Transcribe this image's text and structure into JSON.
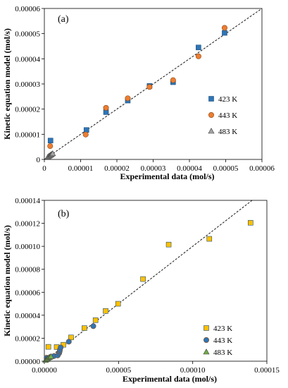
{
  "chart_data": [
    {
      "type": "scatter",
      "panel_label": "(a)",
      "xlabel": "Experimental data (mol/s)",
      "ylabel": "Kinetic equation model (mol/s)",
      "xlim": [
        0,
        6e-05
      ],
      "ylim": [
        0,
        6e-05
      ],
      "x_ticks": [
        "0",
        "0.00001",
        "0.00002",
        "0.00003",
        "0.00004",
        "0.00005",
        "0.00006"
      ],
      "y_ticks": [
        "0",
        "0.00001",
        "0.00002",
        "0.00003",
        "0.00004",
        "0.00005",
        "0.00006"
      ],
      "grid": false,
      "legend_position": "right",
      "parity_line": true,
      "series": [
        {
          "name": "423 K",
          "marker": "square",
          "color": "#2e75b6",
          "points": [
            [
              1.7e-06,
              7.5e-06
            ],
            [
              1.16e-05,
              1.17e-05
            ],
            [
              1.7e-05,
              1.88e-05
            ],
            [
              2.3e-05,
              2.34e-05
            ],
            [
              2.9e-05,
              2.92e-05
            ],
            [
              3.55e-05,
              3.07e-05
            ],
            [
              4.25e-05,
              4.45e-05
            ],
            [
              4.97e-05,
              5.03e-05
            ]
          ]
        },
        {
          "name": "443 K",
          "marker": "circle",
          "color": "#ed7d31",
          "points": [
            [
              1.6e-06,
              5.3e-06
            ],
            [
              1.14e-05,
              9.9e-06
            ],
            [
              1.7e-05,
              2.05e-05
            ],
            [
              2.3e-05,
              2.43e-05
            ],
            [
              2.9e-05,
              2.88e-05
            ],
            [
              3.55e-05,
              3.15e-05
            ],
            [
              4.25e-05,
              4.1e-05
            ],
            [
              4.97e-05,
              5.23e-05
            ]
          ]
        },
        {
          "name": "483 K",
          "marker": "triangle",
          "color": "#a5a5a5",
          "points": [
            [
              1e-06,
              1e-06
            ],
            [
              1.3e-06,
              1.3e-06
            ],
            [
              1.6e-06,
              1.6e-06
            ],
            [
              1.8e-06,
              1.8e-06
            ],
            [
              2e-06,
              2e-06
            ],
            [
              2.3e-06,
              2.3e-06
            ]
          ]
        }
      ]
    },
    {
      "type": "scatter",
      "panel_label": "(b)",
      "xlabel": "Experimental data (mol/s)",
      "ylabel": "Kinetic equation model  (mol/s)",
      "xlim": [
        0,
        0.00015
      ],
      "ylim": [
        0,
        0.00014
      ],
      "x_ticks": [
        "0.00000",
        "0.00005",
        "0.00010",
        "0.00015"
      ],
      "y_ticks": [
        "0.00000",
        "0.00002",
        "0.00004",
        "0.00006",
        "0.00008",
        "0.00010",
        "0.00012",
        "0.00014"
      ],
      "grid": false,
      "legend_position": "bottom-right",
      "parity_line": true,
      "series": [
        {
          "name": "423 K",
          "marker": "square",
          "color": "#ffc000",
          "points": [
            [
              2.7e-06,
              1.25e-05
            ],
            [
              8.3e-06,
              1.23e-05
            ],
            [
              1.28e-05,
              1.43e-05
            ],
            [
              1.8e-05,
              2.07e-05
            ],
            [
              2.7e-05,
              2.88e-05
            ],
            [
              3.45e-05,
              3.57e-05
            ],
            [
              4.13e-05,
              4.37e-05
            ],
            [
              4.97e-05,
              5e-05
            ],
            [
              6.65e-05,
              7.15e-05
            ],
            [
              8.38e-05,
              0.0001015
            ],
            [
              0.0001112,
              0.0001065
            ],
            [
              0.000139,
              0.0001205
            ]
          ]
        },
        {
          "name": "443 K",
          "marker": "circle",
          "color": "#2e75b6",
          "points": [
            [
              1.5e-06,
              3e-06
            ],
            [
              4e-06,
              3.5e-06
            ],
            [
              6.5e-06,
              4.5e-06
            ],
            [
              9e-06,
              5e-06
            ],
            [
              1e-05,
              7e-06
            ],
            [
              1.03e-05,
              8.5e-06
            ],
            [
              1.05e-05,
              1e-05
            ],
            [
              1.1e-05,
              1.2e-05
            ],
            [
              1.65e-05,
              1.7e-05
            ],
            [
              3.3e-05,
              3.05e-05
            ]
          ]
        },
        {
          "name": "483 K",
          "marker": "triangle",
          "color": "#70ad47",
          "points": [
            [
              8e-07,
              8e-07
            ],
            [
              1.5e-06,
              1.5e-06
            ],
            [
              2.2e-06,
              2.2e-06
            ],
            [
              3e-06,
              3e-06
            ],
            [
              3.8e-06,
              3.5e-06
            ],
            [
              4.5e-06,
              4e-06
            ]
          ]
        }
      ]
    }
  ]
}
